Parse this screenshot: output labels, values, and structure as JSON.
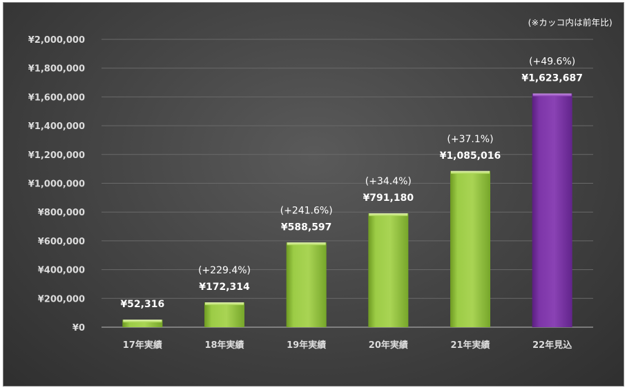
{
  "note": "(※カッコ内は前年比)",
  "colors": {
    "actual": "#9acd42",
    "forecast": "#7e36a8",
    "grid": "#6a6a6a",
    "axis": "#bdbdbd"
  },
  "chart_data": {
    "type": "bar",
    "title": "",
    "xlabel": "",
    "ylabel": "",
    "ylim": [
      0,
      2000000
    ],
    "yticks": [
      0,
      200000,
      400000,
      600000,
      800000,
      1000000,
      1200000,
      1400000,
      1600000,
      1800000,
      2000000
    ],
    "ytick_labels": [
      "¥0",
      "¥200,000",
      "¥400,000",
      "¥600,000",
      "¥800,000",
      "¥1,000,000",
      "¥1,200,000",
      "¥1,400,000",
      "¥1,600,000",
      "¥1,800,000",
      "¥2,000,000"
    ],
    "grid": true,
    "categories": [
      "17年実績",
      "18年実績",
      "19年実績",
      "20年実績",
      "21年実績",
      "22年見込"
    ],
    "values": [
      52316,
      172314,
      588597,
      791180,
      1085016,
      1623687
    ],
    "value_labels": [
      "¥52,316",
      "¥172,314",
      "¥588,597",
      "¥791,180",
      "¥1,085,016",
      "¥1,623,687"
    ],
    "growth_labels": [
      "",
      "(+229.4%)",
      "(+241.6%)",
      "(+34.4%)",
      "(+37.1%)",
      "(+49.6%)"
    ],
    "bar_kinds": [
      "actual",
      "actual",
      "actual",
      "actual",
      "actual",
      "forecast"
    ]
  }
}
